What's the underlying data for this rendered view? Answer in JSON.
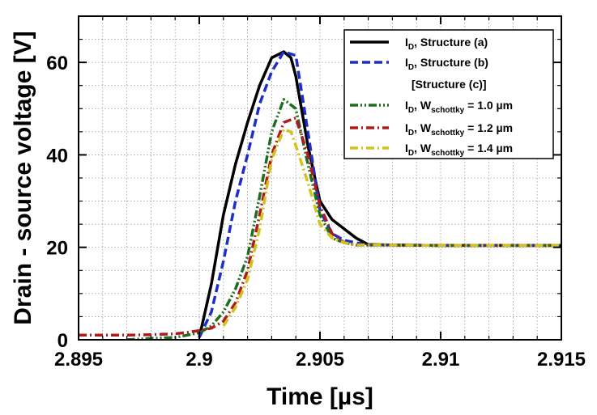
{
  "chart_data": {
    "type": "line",
    "title": "",
    "xlabel": "Time [µs]",
    "ylabel": "Drain - source voltage [V]",
    "xlim": [
      2.895,
      2.915
    ],
    "ylim": [
      0,
      70
    ],
    "xticks": [
      2.895,
      2.9,
      2.905,
      2.91,
      2.915
    ],
    "xtick_labels": [
      "2.895",
      "2.9",
      "2.905",
      "2.91",
      "2.915"
    ],
    "yticks": [
      0,
      20,
      40,
      60
    ],
    "ytick_labels": [
      "0",
      "20",
      "40",
      "60"
    ],
    "grid": true,
    "legend_position": "top-right",
    "legend_group_header": "[Structure (c)]",
    "series": [
      {
        "name": "I_D, Structure (a)",
        "label_main": "I",
        "label_sub": "D",
        "label_rest": ", Structure (a)",
        "color": "#000000",
        "dash": "solid",
        "x": [
          2.9,
          2.9005,
          2.901,
          2.9015,
          2.902,
          2.9025,
          2.903,
          2.9035,
          2.9038,
          2.904,
          2.9045,
          2.905,
          2.9055,
          2.906,
          2.9065,
          2.907,
          2.908,
          2.91,
          2.915
        ],
        "y": [
          0.5,
          12,
          27,
          38,
          47,
          55,
          61,
          62.3,
          61,
          57,
          42,
          30,
          26,
          24,
          22,
          20.6,
          20.5,
          20.4,
          20.4
        ]
      },
      {
        "name": "I_D, Structure (b)",
        "label_main": "I",
        "label_sub": "D",
        "label_rest": ", Structure (b)",
        "color": "#1f2ec8",
        "dash": "dashed",
        "x": [
          2.9,
          2.9005,
          2.901,
          2.9015,
          2.902,
          2.9025,
          2.903,
          2.9035,
          2.904,
          2.9045,
          2.905,
          2.9055,
          2.906,
          2.9065,
          2.907,
          2.908,
          2.91,
          2.915
        ],
        "y": [
          0.5,
          6,
          17,
          30,
          40,
          51,
          58,
          62.3,
          61.5,
          45,
          28,
          23,
          21.5,
          21,
          20.5,
          20.5,
          20.4,
          20.4
        ]
      },
      {
        "name": "I_D, W_schottky = 1.0 µm",
        "label_main": "I",
        "label_sub": "D",
        "label_mid": ", W",
        "label_sub2": "schottky",
        "label_rest": " = 1.0 µm",
        "color": "#1e6e1e",
        "dash": "dashdotdot",
        "x": [
          2.897,
          2.898,
          2.899,
          2.8995,
          2.9,
          2.9005,
          2.901,
          2.9015,
          2.902,
          2.9025,
          2.903,
          2.9035,
          2.904,
          2.9045,
          2.905,
          2.9055,
          2.906,
          2.9065,
          2.907,
          2.908,
          2.91,
          2.915
        ],
        "y": [
          0,
          0.3,
          0.5,
          1,
          1.5,
          3,
          6,
          11,
          18,
          31,
          45,
          52,
          50,
          38,
          27,
          22,
          21,
          20.5,
          20.5,
          20.5,
          20.4,
          20.4
        ]
      },
      {
        "name": "I_D, W_schottky = 1.2 µm",
        "label_main": "I",
        "label_sub": "D",
        "label_mid": ", W",
        "label_sub2": "schottky",
        "label_rest": " = 1.2 µm",
        "color": "#b11a1a",
        "dash": "dashdot",
        "x": [
          2.895,
          2.896,
          2.897,
          2.898,
          2.899,
          2.8995,
          2.9,
          2.9005,
          2.901,
          2.9015,
          2.902,
          2.9025,
          2.903,
          2.9035,
          2.904,
          2.9045,
          2.905,
          2.9055,
          2.906,
          2.9065,
          2.907,
          2.908,
          2.91,
          2.915
        ],
        "y": [
          1,
          1,
          1,
          1.1,
          1.3,
          1.6,
          2,
          2.5,
          4,
          8,
          15,
          27,
          40,
          47,
          48,
          40,
          29,
          23,
          21,
          20.5,
          20.5,
          20.5,
          20.4,
          20.4
        ]
      },
      {
        "name": "I_D, W_schottky = 1.4 µm",
        "label_main": "I",
        "label_sub": "D",
        "label_mid": ", W",
        "label_sub2": "schottky",
        "label_rest": " = 1.4 µm",
        "color": "#d2c21c",
        "dash": "dashdot",
        "x": [
          2.901,
          2.9015,
          2.902,
          2.9025,
          2.903,
          2.9035,
          2.9038,
          2.904,
          2.9045,
          2.905,
          2.9055,
          2.906,
          2.9065,
          2.907,
          2.908,
          2.91,
          2.915
        ],
        "y": [
          3,
          7,
          13,
          24,
          39,
          45.5,
          45,
          42,
          34,
          25,
          22,
          21,
          20.5,
          20.5,
          20.5,
          20.4,
          20.4
        ]
      }
    ]
  }
}
